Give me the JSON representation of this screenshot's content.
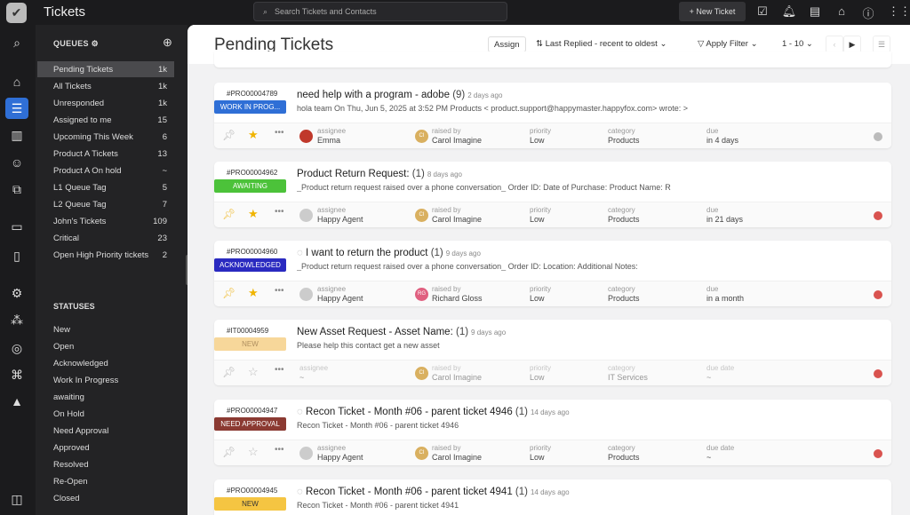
{
  "topbar": {
    "app_title": "Tickets",
    "search_placeholder": "Search Tickets and Contacts",
    "new_ticket": "+ New Ticket"
  },
  "queues": {
    "header": "QUEUES",
    "items": [
      {
        "label": "Pending Tickets",
        "count": "1k"
      },
      {
        "label": "All Tickets",
        "count": "1k"
      },
      {
        "label": "Unresponded",
        "count": "1k"
      },
      {
        "label": "Assigned to me",
        "count": "15"
      },
      {
        "label": "Upcoming This Week",
        "count": "6"
      },
      {
        "label": "Product A Tickets",
        "count": "13"
      },
      {
        "label": "Product A On hold",
        "count": "~"
      },
      {
        "label": "L1 Queue Tag",
        "count": "5"
      },
      {
        "label": "L2 Queue Tag",
        "count": "7"
      },
      {
        "label": "John's Tickets",
        "count": "109"
      },
      {
        "label": "Critical",
        "count": "23"
      },
      {
        "label": "Open High Priority tickets",
        "count": "2"
      }
    ]
  },
  "statuses": {
    "header": "STATUSES",
    "items": [
      "New",
      "Open",
      "Acknowledged",
      "Work In Progress",
      "awaiting",
      "On Hold",
      "Need Approval",
      "Approved",
      "Resolved",
      "Re-Open",
      "Closed"
    ]
  },
  "main": {
    "title": "Pending Tickets",
    "assign": "Assign",
    "sort": "Last Replied - recent to oldest",
    "filter": "Apply Filter",
    "pagination": "1 - 10"
  },
  "tickets": [
    {
      "id": "#PRO00004789",
      "status": "WORK IN PROG...",
      "status_color": "#2f6fd6",
      "subject": "need help with a program - adobe",
      "count": "(9)",
      "ago": "2 days ago",
      "preview": "hola team On Thu, Jun 5, 2025 at 3:52 PM Products < product.support@happymaster.happyfox.com> wrote: >",
      "pinned": false,
      "starred": true,
      "labels": {
        "assignee": "assignee",
        "raised": "raised by",
        "priority": "priority",
        "category": "category",
        "due": "due"
      },
      "assignee": "Emma",
      "raised_by": "Carol Imagine",
      "raised_initials": "CI",
      "priority": "Low",
      "category": "Products",
      "due": "in 4 days",
      "dot": "#bbbbbb"
    },
    {
      "id": "#PRO00004962",
      "status": "AWAITING",
      "status_color": "#4cc23a",
      "subject": "Product Return Request:",
      "count": "(1)",
      "ago": "8 days ago",
      "preview": "_Product return request raised over a phone conversation_ Order ID: Date of Purchase: Product Name: R",
      "pinned": true,
      "starred": true,
      "labels": {
        "assignee": "assignee",
        "raised": "raised by",
        "priority": "priority",
        "category": "category",
        "due": "due"
      },
      "assignee": "Happy Agent",
      "raised_by": "Carol Imagine",
      "raised_initials": "CI",
      "priority": "Low",
      "category": "Products",
      "due": "in 21 days",
      "dot": "#d9534f"
    },
    {
      "id": "#PRO00004960",
      "status": "ACKNOWLEDGED",
      "status_color": "#2a2ac0",
      "subject": "I want to return the product",
      "count": "(1)",
      "ago": "9 days ago",
      "preview": "_Product return request raised over a phone conversation_ Order ID: Location: Additional Notes:",
      "pinned": true,
      "starred": true,
      "labels": {
        "assignee": "assignee",
        "raised": "raised by",
        "priority": "priority",
        "category": "category",
        "due": "due"
      },
      "assignee": "Happy Agent",
      "raised_by": "Richard Gloss",
      "raised_initials": "RG",
      "priority": "Low",
      "category": "Products",
      "due": "in a month",
      "dot": "#d9534f"
    },
    {
      "id": "#IT00004959",
      "status": "NEW",
      "status_color": "#f7d79a",
      "subject": "New Asset Request - Asset Name:",
      "count": "(1)",
      "ago": "9 days ago",
      "preview": "Please help this contact get a new asset",
      "pinned": false,
      "starred": false,
      "labels": {
        "assignee": "assignee",
        "raised": "raised by",
        "priority": "priority",
        "category": "category",
        "due": "due date"
      },
      "assignee": "~",
      "raised_by": "Carol Imagine",
      "raised_initials": "CI",
      "priority": "Low",
      "category": "IT Services",
      "due": "~",
      "dot": "#d9534f"
    },
    {
      "id": "#PRO00004947",
      "status": "NEED APPROVAL",
      "status_color": "#8b3a32",
      "subject": "Recon Ticket - Month #06 - parent ticket 4946",
      "count": "(1)",
      "ago": "14 days ago",
      "preview": "Recon Ticket - Month #06 - parent ticket 4946",
      "pinned": false,
      "starred": false,
      "labels": {
        "assignee": "assignee",
        "raised": "raised by",
        "priority": "priority",
        "category": "category",
        "due": "due date"
      },
      "assignee": "Happy Agent",
      "raised_by": "Carol Imagine",
      "raised_initials": "CI",
      "priority": "Low",
      "category": "Products",
      "due": "~",
      "dot": "#d9534f"
    },
    {
      "id": "#PRO00004945",
      "status": "NEW",
      "status_color": "#f5c542",
      "subject": "Recon Ticket - Month #06 - parent ticket 4941",
      "count": "(1)",
      "ago": "14 days ago",
      "preview": "Recon Ticket - Month #06 - parent ticket 4941"
    }
  ]
}
